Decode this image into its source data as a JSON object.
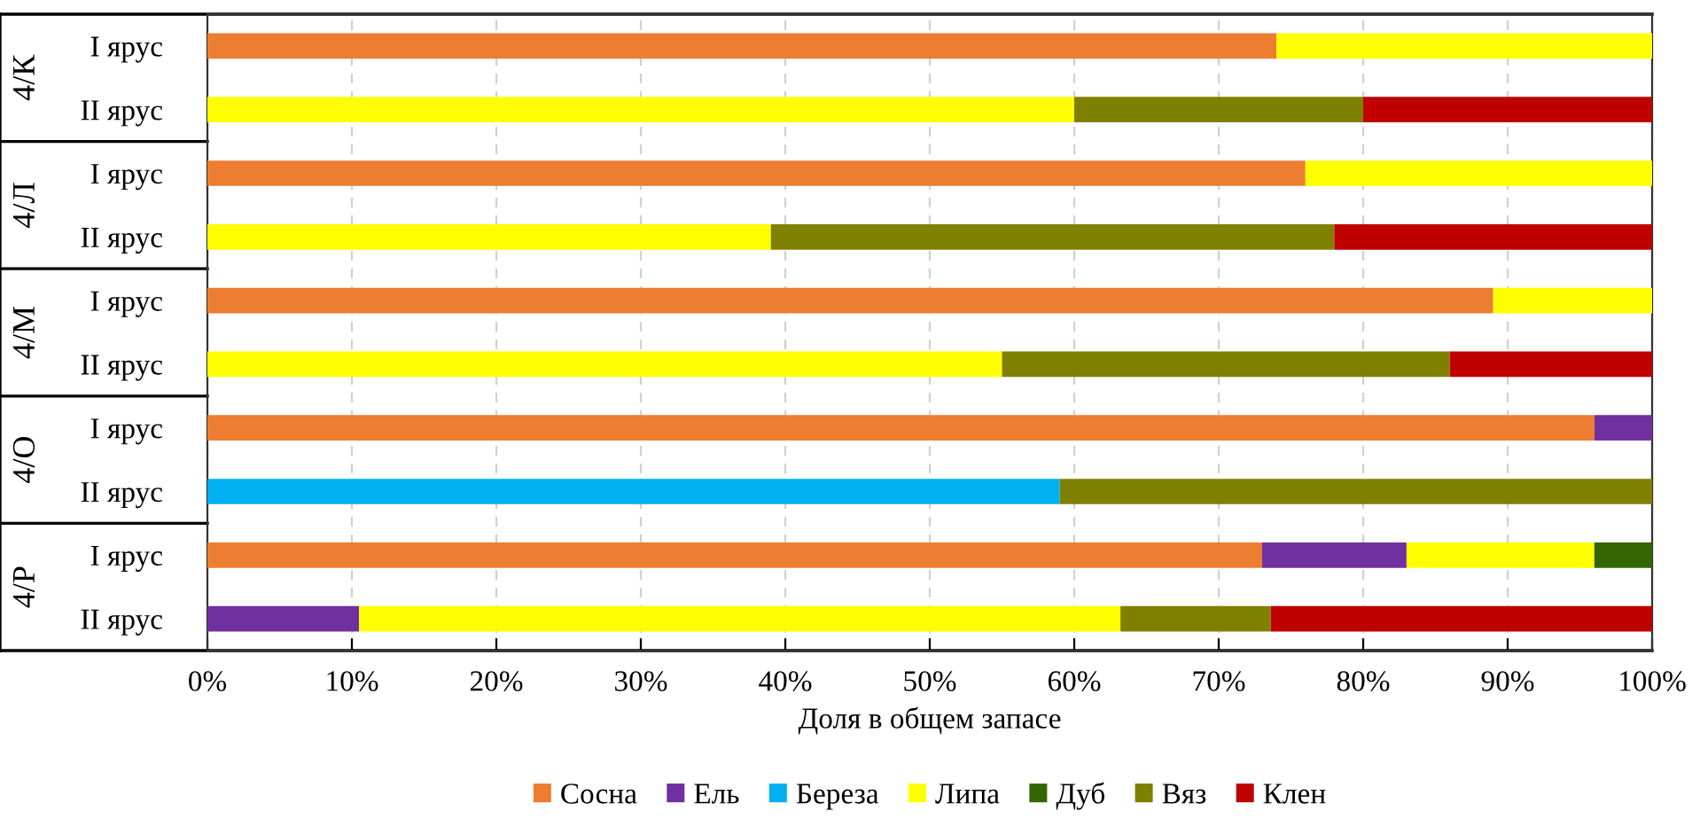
{
  "chart_data": {
    "type": "bar",
    "orientation": "horizontal",
    "stacked": true,
    "categories": [
      "I ярус",
      "II ярус",
      "I ярус",
      "II ярус",
      "I ярус",
      "II ярус",
      "I ярус",
      "II ярус",
      "I ярус",
      "II ярус"
    ],
    "annotations": [
      "4/К",
      "4/Л",
      "4/М",
      "4/О",
      "4/Р"
    ],
    "xlabel": "Доля в общем запасе",
    "series": [
      {
        "name": "Сосна",
        "color": "#ed7d31",
        "values": [
          74,
          0,
          76,
          0,
          89,
          0,
          96,
          0,
          73,
          0
        ]
      },
      {
        "name": "Ель",
        "color": "#7030a0",
        "values": [
          0,
          0,
          0,
          0,
          0,
          0,
          4,
          0,
          10,
          10.5
        ]
      },
      {
        "name": "Береза",
        "color": "#00b0f0",
        "values": [
          0,
          0,
          0,
          0,
          0,
          0,
          0,
          59,
          0,
          0
        ]
      },
      {
        "name": "Липа",
        "color": "#ffff00",
        "values": [
          26,
          60,
          24,
          39,
          11,
          55,
          0,
          0,
          13,
          52.7
        ]
      },
      {
        "name": "Дуб",
        "color": "#336600",
        "values": [
          0,
          0,
          0,
          0,
          0,
          0,
          0,
          0,
          4,
          0
        ]
      },
      {
        "name": "Вяз",
        "color": "#808000",
        "values": [
          0,
          20,
          0,
          39,
          0,
          31,
          0,
          41,
          0,
          10.4
        ]
      },
      {
        "name": "Клен",
        "color": "#c00000",
        "values": [
          0,
          20,
          0,
          22,
          0,
          14,
          0,
          0,
          0,
          26.4
        ]
      }
    ],
    "xlim": [
      0,
      100
    ],
    "xticks": [
      {
        "value": 0,
        "label": "0%"
      },
      {
        "value": 10,
        "label": "10%"
      },
      {
        "value": 20,
        "label": "20%"
      },
      {
        "value": 30,
        "label": "30%"
      },
      {
        "value": 40,
        "label": "40%"
      },
      {
        "value": 50,
        "label": "50%"
      },
      {
        "value": 60,
        "label": "60%"
      },
      {
        "value": 70,
        "label": "70%"
      },
      {
        "value": 80,
        "label": "80%"
      },
      {
        "value": 90,
        "label": "90%"
      },
      {
        "value": 100,
        "label": "100%"
      }
    ],
    "grid": "x",
    "legend": "bottom"
  }
}
